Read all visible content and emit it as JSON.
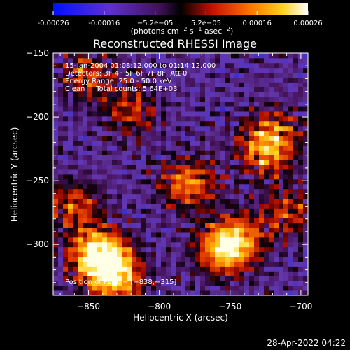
{
  "colorbar": {
    "ticks": [
      "-0.00026",
      "-0.00016",
      "−5.2e−05",
      "5.2e−05",
      "0.00016",
      "0.00026"
    ],
    "unit_prefix": "(photons cm",
    "unit_exp1": "−2",
    "unit_mid": " s",
    "unit_exp2": "−1",
    "unit_mid2": " asec",
    "unit_exp3": "−2",
    "unit_suffix": ")",
    "range": [
      -0.00026,
      0.00026
    ]
  },
  "title": "Reconstructed RHESSI Image",
  "annotations": [
    "15-Jan-2004 01:08:12.000 to 01:14:12.000",
    "Detectors: 3F 4F 5F 6F 7F 8F, Att 0",
    "Energy Range: 25.0 - 50.0 keV",
    "Clean     Total counts: 5.64E+03"
  ],
  "peak_label": "Position of Peak = [−838,−315]",
  "footer_timestamp": "28-Apr-2022 04:22",
  "chart_data": {
    "type": "heatmap",
    "title": "Reconstructed RHESSI Image",
    "xlabel": "Heliocentric X (arcsec)",
    "ylabel": "Heliocentric Y (arcsec)",
    "xlim": [
      -875,
      -695
    ],
    "ylim": [
      -340,
      -150
    ],
    "xticks": [
      -850,
      -800,
      -750,
      -700
    ],
    "xtick_labels": [
      "−850",
      "−800",
      "−750",
      "−700"
    ],
    "yticks": [
      -300,
      -250,
      -200,
      -150
    ],
    "ytick_labels": [
      "−300",
      "−250",
      "−200",
      "−150"
    ],
    "colormap": "RHESSI red-temperature (blue → purple → black → red → yellow → white)",
    "peak_position": [
      -838,
      -315
    ],
    "bright_regions": [
      {
        "x": -838,
        "y": -315,
        "level": 1.0
      },
      {
        "x": -845,
        "y": -305,
        "level": 0.85
      },
      {
        "x": -830,
        "y": -328,
        "level": 0.75
      },
      {
        "x": -780,
        "y": -252,
        "level": 0.8
      },
      {
        "x": -755,
        "y": -305,
        "level": 0.9
      },
      {
        "x": -745,
        "y": -295,
        "level": 0.75
      },
      {
        "x": -725,
        "y": -228,
        "level": 0.7
      },
      {
        "x": -720,
        "y": -212,
        "level": 0.6
      },
      {
        "x": -860,
        "y": -270,
        "level": 0.6
      },
      {
        "x": -820,
        "y": -195,
        "level": 0.5
      },
      {
        "x": -850,
        "y": -168,
        "level": 0.55
      },
      {
        "x": -710,
        "y": -275,
        "level": 0.55
      }
    ]
  }
}
